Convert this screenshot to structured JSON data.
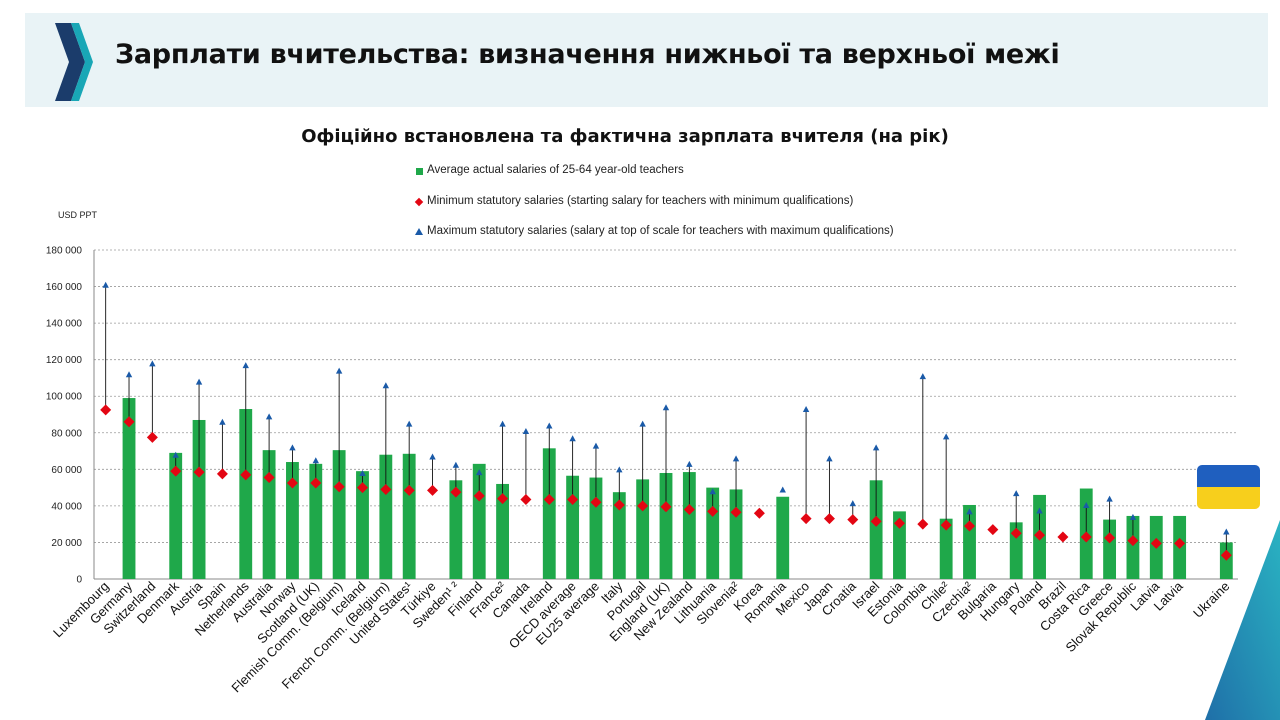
{
  "header": {
    "title": "Зарплати вчительства: визначення нижньої та верхньої межі"
  },
  "legend": {
    "actual": "Average actual salaries of 25-64 year-old teachers",
    "minimum": "Minimum statutory salaries (starting salary for teachers with minimum qualifications)",
    "maximum": "Maximum statutory salaries (salary at top of scale for teachers with maximum qualifications)"
  },
  "colors": {
    "bar": "#1fa84a",
    "min_marker": "#e30613",
    "max_marker": "#1a5aa8",
    "header_bg": "#e9f3f6",
    "flag_blue": "#1f5fbf",
    "flag_yellow": "#f7cf1c"
  },
  "icons": {
    "logo": "oecd-chevron-logo-icon",
    "flag": "ukraine-flag-icon"
  },
  "chart_data": {
    "type": "bar",
    "title": "Офіційно встановлена та фактична зарплата вчителя (на рік)",
    "ylabel": "USD PPT",
    "ylim": [
      0,
      180000
    ],
    "yticks": [
      "0",
      "20 000",
      "40 000",
      "60 000",
      "80 000",
      "100 000",
      "120 000",
      "140 000",
      "160 000",
      "180 000"
    ],
    "grid": true,
    "categories": [
      "Luxembourg",
      "Germany",
      "Switzerland",
      "Denmark",
      "Austria",
      "Spain",
      "Netherlands",
      "Australia",
      "Norway",
      "Scotland (UK)",
      "Flemish Comm. (Belgium)",
      "Iceland",
      "French Comm. (Belgium)",
      "United States¹",
      "Türkiye",
      "Sweden¹ ²",
      "Finland",
      "France²",
      "Canada",
      "Ireland",
      "OECD average",
      "EU25 average",
      "Italy",
      "Portugal",
      "England (UK)",
      "New Zealand",
      "Lithuania",
      "Slovenia²",
      "Korea",
      "Romania",
      "Mexico",
      "Japan",
      "Croatia",
      "Israel",
      "Estonia",
      "Colombia",
      "Chile²",
      "Czechia²",
      "Bulgaria",
      "Hungary",
      "Poland",
      "Brazil",
      "Costa Rica",
      "Greece",
      "Slovak Republic",
      "Latvia",
      "Latvia",
      "",
      "Ukraine"
    ],
    "series": [
      {
        "name": "Average actual salaries of 25-64 year-old teachers",
        "values": [
          null,
          99000,
          null,
          69000,
          87000,
          null,
          93000,
          70500,
          64000,
          63000,
          70500,
          59000,
          68000,
          68500,
          null,
          54000,
          63000,
          52000,
          null,
          71500,
          56500,
          55500,
          47500,
          54500,
          58000,
          58500,
          50000,
          49000,
          null,
          45000,
          null,
          null,
          null,
          54000,
          37000,
          null,
          33000,
          40500,
          null,
          31000,
          46000,
          null,
          49500,
          32500,
          34500,
          34500,
          34500,
          null,
          20000
        ]
      },
      {
        "name": "Minimum statutory salaries (starting salary for teachers with minimum qualifications)",
        "values": [
          92500,
          86000,
          77500,
          59000,
          58500,
          57500,
          57000,
          55500,
          52500,
          52500,
          50500,
          50000,
          49000,
          48500,
          48500,
          47500,
          45500,
          44000,
          43500,
          43500,
          43500,
          42000,
          40500,
          40000,
          39500,
          38000,
          37000,
          36500,
          36000,
          null,
          33000,
          33000,
          32500,
          31500,
          30500,
          30000,
          29500,
          29000,
          27000,
          25000,
          24000,
          23000,
          23000,
          22500,
          21000,
          19500,
          19500,
          null,
          13000
        ]
      },
      {
        "name": "Maximum statutory salaries (salary at top of scale for teachers with maximum qualifications)",
        "values": [
          161000,
          112000,
          118000,
          68000,
          108000,
          86000,
          117000,
          89000,
          72000,
          65000,
          114000,
          58000,
          106000,
          85000,
          67000,
          62500,
          58500,
          85000,
          81000,
          84000,
          77000,
          73000,
          60000,
          85000,
          94000,
          63000,
          48000,
          66000,
          null,
          49000,
          93000,
          66000,
          41500,
          72000,
          null,
          111000,
          78000,
          37000,
          null,
          47000,
          37500,
          null,
          40500,
          44000,
          34000,
          null,
          null,
          null,
          26000
        ]
      }
    ]
  }
}
